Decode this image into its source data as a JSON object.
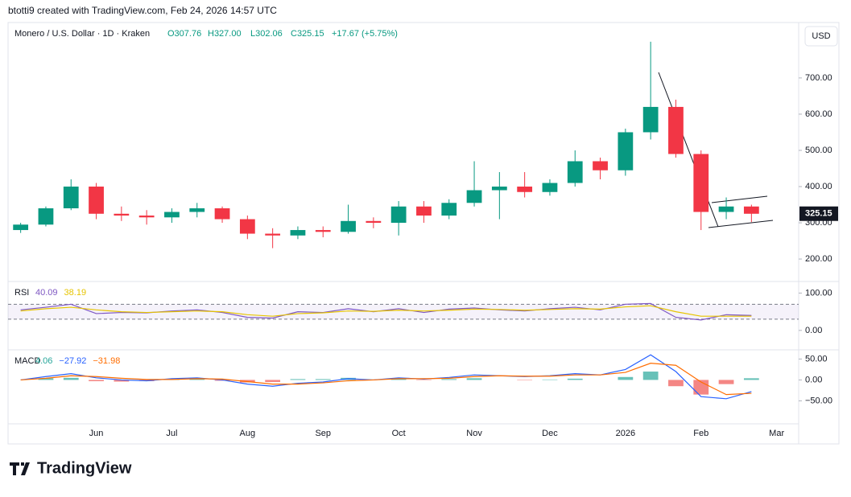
{
  "watermark": "btotti9 created with TradingView.com, Feb 24, 2026 14:57 UTC",
  "legend": {
    "symbol": "Monero / U.S. Dollar · 1D · Kraken",
    "open": "O307.76",
    "high": "H327.00",
    "low": "L302.06",
    "close": "C325.15",
    "change": "+17.67 (+5.75%)"
  },
  "currency": "USD",
  "brand": "TradingView",
  "chart_data": [
    {
      "type": "candlestick",
      "up_color": "#089981",
      "down_color": "#f23645",
      "categories": [
        null,
        null,
        null,
        "Jun",
        null,
        null,
        "Jul",
        null,
        null,
        "Aug",
        null,
        null,
        "Sep",
        null,
        null,
        "Oct",
        null,
        null,
        "Nov",
        null,
        null,
        "Dec",
        null,
        null,
        "2026",
        null,
        null,
        "Feb",
        null,
        null,
        "Mar"
      ],
      "open": [
        280,
        295,
        340,
        400,
        325,
        320,
        315,
        330,
        340,
        310,
        270,
        265,
        280,
        275,
        305,
        300,
        345,
        320,
        355,
        390,
        400,
        385,
        410,
        470,
        445,
        550,
        620,
        490,
        330,
        345,
        null
      ],
      "high": [
        300,
        345,
        420,
        410,
        345,
        335,
        340,
        355,
        345,
        320,
        285,
        290,
        290,
        350,
        315,
        360,
        360,
        365,
        470,
        440,
        440,
        420,
        500,
        480,
        560,
        800,
        640,
        500,
        370,
        350,
        null
      ],
      "low": [
        272,
        290,
        335,
        310,
        305,
        295,
        300,
        315,
        300,
        255,
        230,
        255,
        260,
        270,
        285,
        265,
        300,
        310,
        345,
        310,
        370,
        375,
        400,
        420,
        430,
        530,
        480,
        280,
        310,
        302,
        null
      ],
      "close": [
        295,
        340,
        400,
        325,
        320,
        315,
        330,
        340,
        310,
        270,
        265,
        280,
        275,
        305,
        300,
        345,
        320,
        355,
        390,
        400,
        385,
        410,
        470,
        445,
        550,
        620,
        490,
        330,
        345,
        325,
        null
      ],
      "last_price": 325.15,
      "ylim": [
        138,
        853
      ],
      "yticks": [
        {
          "value": 200,
          "label": "200.00"
        },
        {
          "value": 300,
          "label": "300.00"
        },
        {
          "value": 400,
          "label": "400.00"
        },
        {
          "value": 500,
          "label": "500.00"
        },
        {
          "value": 600,
          "label": "600.00"
        },
        {
          "value": 700,
          "label": "700.00"
        }
      ]
    },
    {
      "type": "line",
      "title": "RSI",
      "band": [
        30,
        70
      ],
      "series": [
        {
          "name": "40.09",
          "color": "#7e57c2",
          "values": [
            55,
            62,
            70,
            45,
            48,
            47,
            52,
            55,
            48,
            35,
            33,
            50,
            48,
            58,
            50,
            58,
            48,
            57,
            60,
            55,
            52,
            58,
            62,
            55,
            70,
            72,
            35,
            28,
            42,
            40,
            null
          ]
        },
        {
          "name": "38.19",
          "color": "#e6c400",
          "values": [
            52,
            58,
            62,
            55,
            50,
            48,
            50,
            52,
            50,
            42,
            38,
            45,
            47,
            52,
            51,
            54,
            52,
            54,
            57,
            56,
            54,
            56,
            58,
            57,
            63,
            66,
            50,
            38,
            38,
            38,
            null
          ]
        }
      ],
      "ylim": [
        -52,
        131
      ],
      "yticks": [
        {
          "value": 0,
          "label": "0.00"
        },
        {
          "value": 100,
          "label": "100.00"
        }
      ]
    },
    {
      "type": "macd",
      "title": "MACD",
      "histogram": {
        "name": "4.06",
        "up_color": "#26a69a",
        "down_color": "#ef5350",
        "values": [
          0,
          4,
          5,
          -3,
          -4,
          -3,
          2,
          2,
          -2,
          -6,
          -5,
          2,
          2,
          5,
          0,
          2,
          -1,
          2,
          4,
          0,
          -1,
          1,
          3,
          0,
          7,
          20,
          -15,
          -35,
          -10,
          4,
          null
        ]
      },
      "series": [
        {
          "name": "−27.92",
          "color": "#2962ff",
          "values": [
            0,
            8,
            15,
            5,
            0,
            -2,
            3,
            5,
            0,
            -10,
            -15,
            -8,
            -5,
            3,
            0,
            5,
            2,
            6,
            12,
            10,
            8,
            10,
            15,
            12,
            25,
            60,
            20,
            -40,
            -45,
            -28,
            null
          ]
        },
        {
          "name": "−31.98",
          "color": "#ff6d00",
          "values": [
            0,
            4,
            10,
            8,
            4,
            1,
            1,
            3,
            2,
            -4,
            -10,
            -10,
            -7,
            -2,
            0,
            3,
            3,
            4,
            8,
            10,
            9,
            9,
            12,
            12,
            18,
            40,
            35,
            -5,
            -35,
            -32,
            null
          ]
        }
      ],
      "ylim": [
        -105,
        72
      ],
      "yticks": [
        {
          "value": -50,
          "label": "−50.00"
        },
        {
          "value": 0,
          "label": "0.00"
        },
        {
          "value": 50,
          "label": "50.00"
        }
      ]
    }
  ]
}
